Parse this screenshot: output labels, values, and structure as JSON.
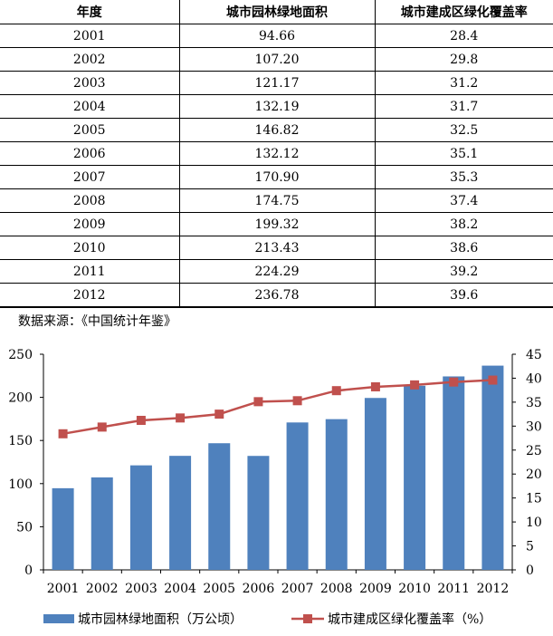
{
  "table": {
    "headers": [
      "年度",
      "城市园林绿地面积",
      "城市建成区绿化覆盖率"
    ],
    "rows": [
      [
        "2001",
        "94.66",
        "28.4"
      ],
      [
        "2002",
        "107.20",
        "29.8"
      ],
      [
        "2003",
        "121.17",
        "31.2"
      ],
      [
        "2004",
        "132.19",
        "31.7"
      ],
      [
        "2005",
        "146.82",
        "32.5"
      ],
      [
        "2006",
        "132.12",
        "35.1"
      ],
      [
        "2007",
        "170.90",
        "35.3"
      ],
      [
        "2008",
        "174.75",
        "37.4"
      ],
      [
        "2009",
        "199.32",
        "38.2"
      ],
      [
        "2010",
        "213.43",
        "38.6"
      ],
      [
        "2011",
        "224.29",
        "39.2"
      ],
      [
        "2012",
        "236.78",
        "39.6"
      ]
    ]
  },
  "source_note": "数据来源：《中国统计年鉴》",
  "chart_data": {
    "type": "bar",
    "categories": [
      "2001",
      "2002",
      "2003",
      "2004",
      "2005",
      "2006",
      "2007",
      "2008",
      "2009",
      "2010",
      "2011",
      "2012"
    ],
    "series": [
      {
        "name": "城市园林绿地面积（万公顷）",
        "type": "bar",
        "axis": "left",
        "color": "#4F81BD",
        "values": [
          94.66,
          107.2,
          121.17,
          132.19,
          146.82,
          132.12,
          170.9,
          174.75,
          199.32,
          213.43,
          224.29,
          236.78
        ]
      },
      {
        "name": "城市建成区绿化覆盖率（%）",
        "type": "line",
        "axis": "right",
        "color": "#C0504D",
        "values": [
          28.4,
          29.8,
          31.2,
          31.7,
          32.5,
          35.1,
          35.3,
          37.4,
          38.2,
          38.6,
          39.2,
          39.6
        ]
      }
    ],
    "y_left": {
      "range": [
        0,
        250
      ],
      "ticks": [
        "0",
        "50",
        "100",
        "150",
        "200",
        "250"
      ]
    },
    "y_right": {
      "range": [
        0,
        45
      ],
      "ticks": [
        "0",
        "5",
        "10",
        "15",
        "20",
        "25",
        "30",
        "35",
        "40",
        "45"
      ]
    },
    "grid": false,
    "legend_position": "bottom"
  }
}
